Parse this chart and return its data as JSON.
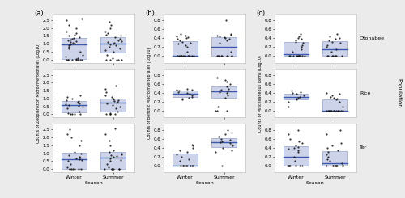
{
  "panel_labels": [
    "(a)",
    "(b)",
    "(c)"
  ],
  "col_ylabels": [
    "Counts of Zooplankton Microinvertebrates (Log10)",
    "Counts of Benthic Macroinvertebrates (Log10)",
    "Counts of Miscellaneous Items (Log10)"
  ],
  "row_labels": [
    "Otonabee",
    "Rice",
    "Ter"
  ],
  "row_label_header": "Population",
  "xlabel": "Season",
  "seasons": [
    "Winter",
    "Summer"
  ],
  "box_facecolor": "#cdd3e8",
  "box_edgecolor": "#8090c0",
  "median_color": "#3a5aad",
  "point_color": "#111111",
  "fig_facecolor": "#ebebeb",
  "ax_facecolor": "#ffffff",
  "data": {
    "a": {
      "Otonabee": {
        "Winter": [
          0,
          0,
          0,
          0,
          0,
          0,
          0,
          0,
          0.05,
          0.1,
          0.2,
          0.3,
          0.5,
          0.7,
          0.8,
          0.9,
          0.95,
          1.0,
          1.05,
          1.1,
          1.15,
          1.2,
          1.25,
          1.3,
          1.35,
          1.4,
          1.5,
          1.6,
          1.7,
          1.8,
          2.0,
          2.2,
          2.5,
          2.6
        ],
        "Summer": [
          0,
          0,
          0,
          0,
          0,
          0.1,
          0.3,
          0.5,
          0.6,
          0.7,
          0.8,
          0.9,
          0.95,
          1.0,
          1.05,
          1.1,
          1.15,
          1.2,
          1.25,
          1.3,
          1.4,
          1.5,
          1.6,
          1.7,
          1.8,
          2.0,
          2.2,
          2.4
        ]
      },
      "Rice": {
        "Winter": [
          0,
          0,
          0,
          0,
          0.1,
          0.2,
          0.4,
          0.5,
          0.55,
          0.6,
          0.65,
          0.7,
          0.75,
          0.8,
          0.85,
          0.9,
          1.0,
          1.1,
          1.2
        ],
        "Summer": [
          0,
          0,
          0,
          0,
          0.1,
          0.2,
          0.4,
          0.5,
          0.6,
          0.7,
          0.75,
          0.8,
          0.85,
          0.9,
          0.95,
          1.0,
          1.1,
          1.2,
          1.4,
          1.6,
          1.8
        ]
      },
      "Ter": {
        "Winter": [
          0,
          0,
          0,
          0,
          0,
          0,
          0,
          0.1,
          0.3,
          0.5,
          0.6,
          0.65,
          0.7,
          0.75,
          0.8,
          0.9,
          1.0,
          1.1,
          1.5,
          1.8,
          2.0,
          2.2,
          2.5
        ],
        "Summer": [
          0,
          0,
          0,
          0,
          0,
          0,
          0.1,
          0.3,
          0.5,
          0.6,
          0.7,
          0.8,
          0.85,
          0.9,
          0.95,
          1.0,
          1.1,
          1.2,
          1.5,
          1.8,
          2.2,
          2.6
        ]
      }
    },
    "b": {
      "Otonabee": {
        "Winter": [
          0,
          0,
          0,
          0,
          0,
          0,
          0,
          0,
          0,
          0,
          0,
          0,
          0,
          0,
          0.1,
          0.2,
          0.25,
          0.28,
          0.3,
          0.32,
          0.35,
          0.38,
          0.4,
          0.42,
          0.45,
          0.47,
          0.5
        ],
        "Summer": [
          0,
          0,
          0,
          0,
          0,
          0,
          0,
          0,
          0,
          0.1,
          0.3,
          0.35,
          0.38,
          0.4,
          0.42,
          0.45,
          0.47,
          0.48,
          0.5,
          0.8
        ]
      },
      "Rice": {
        "Winter": [
          0.25,
          0.28,
          0.3,
          0.32,
          0.35,
          0.38,
          0.4,
          0.42,
          0.45,
          0.47,
          0.5,
          0.48
        ],
        "Summer": [
          0,
          0,
          0,
          0.1,
          0.3,
          0.35,
          0.4,
          0.42,
          0.44,
          0.46,
          0.48,
          0.5,
          0.55,
          0.6,
          0.65,
          0.7,
          0.75
        ]
      },
      "Ter": {
        "Winter": [
          0,
          0,
          0,
          0,
          0,
          0,
          0,
          0,
          0,
          0,
          0,
          0.1,
          0.15,
          0.2,
          0.25,
          0.3,
          0.35,
          0.4,
          0.45,
          0.48
        ],
        "Summer": [
          0,
          0.3,
          0.35,
          0.4,
          0.45,
          0.48,
          0.5,
          0.52,
          0.55,
          0.58,
          0.6,
          0.65,
          0.7,
          0.75,
          0.8
        ]
      }
    },
    "c": {
      "Otonabee": {
        "Winter": [
          0,
          0,
          0,
          0,
          0,
          0,
          0,
          0,
          0,
          0,
          0,
          0.1,
          0.15,
          0.2,
          0.25,
          0.3,
          0.32,
          0.35,
          0.38,
          0.4,
          0.45,
          0.5
        ],
        "Summer": [
          0,
          0,
          0,
          0,
          0,
          0,
          0,
          0,
          0.1,
          0.15,
          0.2,
          0.25,
          0.3,
          0.32,
          0.35,
          0.38,
          0.4,
          0.45,
          0.5
        ]
      },
      "Rice": {
        "Winter": [
          0.1,
          0.2,
          0.25,
          0.28,
          0.3,
          0.32,
          0.35,
          0.38,
          0.4,
          0.42,
          0.45
        ],
        "Summer": [
          0,
          0,
          0,
          0,
          0,
          0,
          0,
          0,
          0,
          0,
          0,
          0,
          0,
          0,
          0.1,
          0.2,
          0.25,
          0.28,
          0.3,
          0.32,
          0.35,
          0.38,
          0.4
        ]
      },
      "Ter": {
        "Winter": [
          0,
          0,
          0,
          0,
          0,
          0,
          0,
          0,
          0,
          0,
          0.1,
          0.2,
          0.3,
          0.35,
          0.38,
          0.4,
          0.42,
          0.45,
          0.5,
          0.55,
          0.6,
          0.7,
          0.8
        ],
        "Summer": [
          0,
          0,
          0,
          0,
          0,
          0,
          0,
          0,
          0,
          0,
          0,
          0.05,
          0.1,
          0.15,
          0.2,
          0.25,
          0.3,
          0.35,
          0.4,
          0.45,
          0.5,
          0.7,
          0.8
        ]
      }
    }
  },
  "ylims": {
    "a": [
      -0.2,
      2.9
    ],
    "b": [
      -0.15,
      0.95
    ],
    "c": [
      -0.15,
      0.95
    ]
  },
  "yticks": {
    "a": [
      0,
      0.5,
      1.0,
      1.5,
      2.0,
      2.5
    ],
    "b": [
      0,
      0.2,
      0.4,
      0.6,
      0.8
    ],
    "c": [
      0,
      0.2,
      0.4,
      0.6,
      0.8
    ]
  }
}
